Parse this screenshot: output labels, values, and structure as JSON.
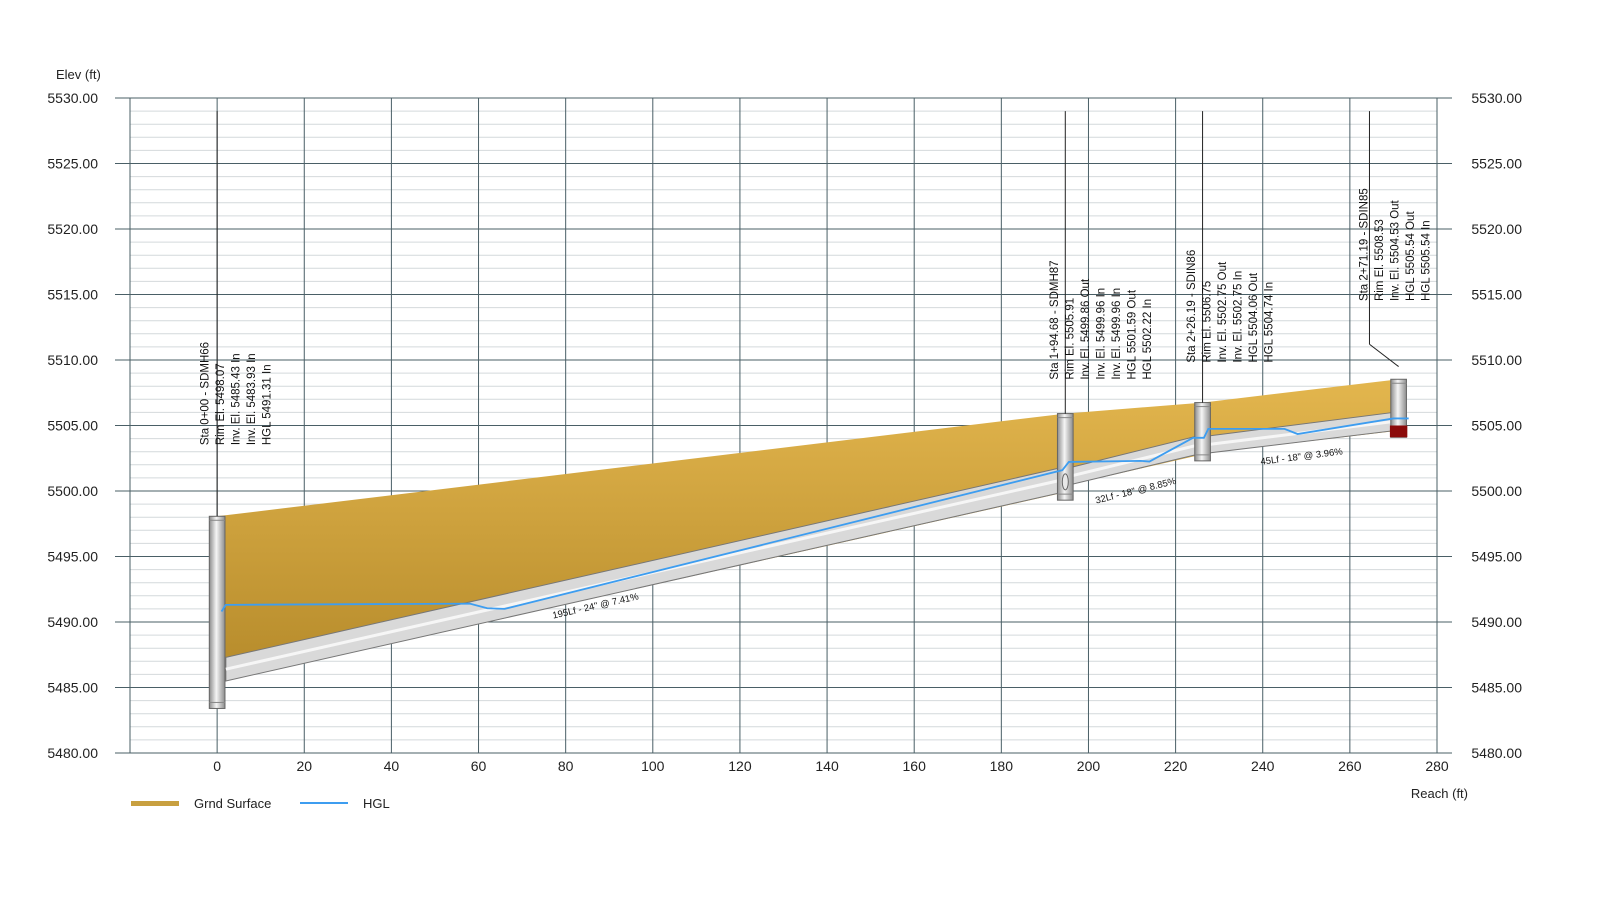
{
  "chart_data": {
    "type": "profile",
    "ylabel": "Elev (ft)",
    "xlabel": "Reach (ft)",
    "ylim": [
      5480,
      5530
    ],
    "xlim": [
      -20,
      280
    ],
    "y_ticks": [
      "5480.00",
      "5485.00",
      "5490.00",
      "5495.00",
      "5500.00",
      "5505.00",
      "5510.00",
      "5515.00",
      "5520.00",
      "5525.00",
      "5530.00"
    ],
    "x_ticks": [
      "0",
      "20",
      "40",
      "60",
      "80",
      "100",
      "120",
      "140",
      "160",
      "180",
      "200",
      "220",
      "240",
      "260",
      "280"
    ],
    "legend": [
      {
        "name": "Grnd Surface",
        "color": "#c8a040"
      },
      {
        "name": "HGL",
        "color": "#3d9df0"
      }
    ],
    "ground_surface": [
      {
        "x": 0,
        "y": 5498.07
      },
      {
        "x": 194.68,
        "y": 5505.91
      },
      {
        "x": 226.19,
        "y": 5506.75
      },
      {
        "x": 271.19,
        "y": 5508.53
      }
    ],
    "hgl": [
      {
        "x": 1,
        "y": 5490.8
      },
      {
        "x": 2,
        "y": 5491.31
      },
      {
        "x": 58,
        "y": 5491.4
      },
      {
        "x": 62,
        "y": 5491.05
      },
      {
        "x": 66,
        "y": 5491.0
      },
      {
        "x": 194,
        "y": 5501.59
      },
      {
        "x": 195.5,
        "y": 5502.22
      },
      {
        "x": 212,
        "y": 5502.3
      },
      {
        "x": 214,
        "y": 5502.25
      },
      {
        "x": 224,
        "y": 5504.06
      },
      {
        "x": 226.5,
        "y": 5504.06
      },
      {
        "x": 227.5,
        "y": 5504.74
      },
      {
        "x": 245,
        "y": 5504.74
      },
      {
        "x": 248,
        "y": 5504.35
      },
      {
        "x": 270,
        "y": 5505.54
      },
      {
        "x": 273.5,
        "y": 5505.54
      }
    ],
    "structures": [
      {
        "x": 0,
        "rim": 5498.07,
        "bottom": 5483.4,
        "width": 3.6,
        "label_x": -2,
        "label_top": 5503.5,
        "leader_top": 5529,
        "lines": [
          "Sta 0+00 - SDMH66",
          "Rim El. 5498.07",
          "Inv. El. 5485.43 In",
          "Inv. El. 5483.93 In",
          "HGL 5491.31 In"
        ]
      },
      {
        "x": 194.68,
        "rim": 5505.91,
        "bottom": 5499.3,
        "width": 3.6,
        "label_x": 193,
        "label_top": 5508.5,
        "leader_top": 5529,
        "lines": [
          "Sta 1+94.68 - SDMH87",
          "Rim El. 5505.91",
          "Inv. El. 5499.86 Out",
          "Inv. El. 5499.96 In",
          "Inv. El. 5499.96 In",
          "HGL 5501.59 Out",
          "HGL 5502.22 In"
        ]
      },
      {
        "x": 226.19,
        "rim": 5506.75,
        "bottom": 5502.3,
        "width": 3.6,
        "label_x": 224.5,
        "label_top": 5509.8,
        "leader_top": 5529,
        "lines": [
          "Sta 2+26.19 - SDIN86",
          "Rim El. 5506.75",
          "Inv. El. 5502.75 Out",
          "Inv. El. 5502.75 In",
          "HGL 5504.06 Out",
          "HGL 5504.74 In"
        ]
      },
      {
        "x": 271.19,
        "rim": 5508.53,
        "bottom": 5504.1,
        "width": 3.6,
        "label_x": 264,
        "label_top": 5514.5,
        "leader_top": 5529,
        "lines": [
          "Sta 2+71.19 - SDIN85",
          "Rim El. 5508.53",
          "Inv. El. 5504.53 Out",
          "HGL 5505.54 Out",
          "HGL 5505.54 In"
        ]
      }
    ],
    "pipes": [
      {
        "x1": 2,
        "y1_top": 5487.3,
        "y1_bot": 5485.5,
        "x2": 194,
        "y2_top": 5501.8,
        "y2_bot": 5499.9,
        "label": "195Lf - 24\" @ 7.41%",
        "label_x": 87,
        "label_y": 5491.0
      },
      {
        "x1": 196,
        "y1_top": 5501.8,
        "y1_bot": 5500.5,
        "x2": 225,
        "y2_top": 5504.2,
        "y2_bot": 5502.8,
        "label": "32Lf - 18\" @ 8.85%",
        "label_x": 211,
        "label_y": 5499.8
      },
      {
        "x1": 227.5,
        "y1_top": 5504.2,
        "y1_bot": 5502.9,
        "x2": 270,
        "y2_top": 5506.0,
        "y2_bot": 5504.6,
        "label": "45Lf - 18\" @ 3.96%",
        "label_x": 249,
        "label_y": 5502.4
      }
    ]
  }
}
